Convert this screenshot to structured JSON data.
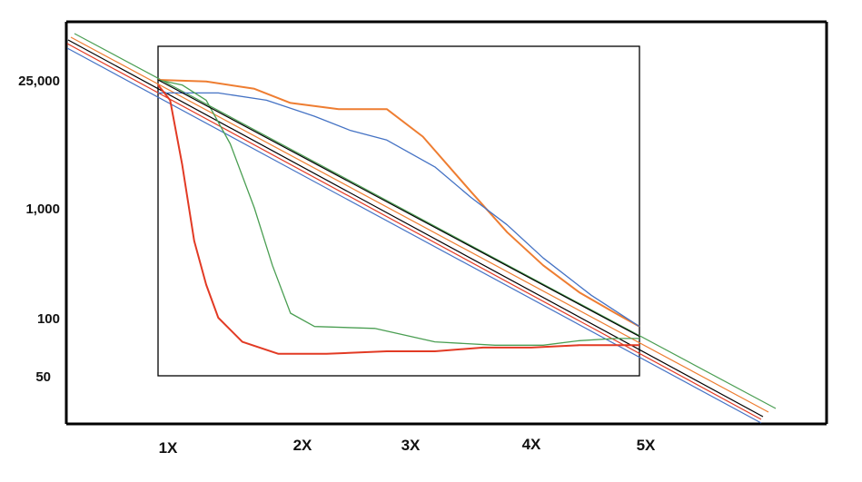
{
  "chart_data": {
    "type": "line",
    "title": "",
    "xlabel": "",
    "ylabel": "",
    "x_ticks": [
      "1X",
      "2X",
      "3X",
      "4X",
      "5X"
    ],
    "y_ticks": [
      "25,000",
      "1,000",
      "100",
      "50"
    ],
    "grid": false,
    "legend": "none",
    "colors": {
      "orange": "#ee7d31",
      "blue": "#4472c4",
      "green": "#4a9e52",
      "red": "#e23a24",
      "black": "#000000"
    },
    "series": [
      {
        "color": "orange",
        "points": [
          [
            1.0,
            25000
          ],
          [
            1.4,
            24000
          ],
          [
            1.8,
            20000
          ],
          [
            2.1,
            14000
          ],
          [
            2.5,
            12000
          ],
          [
            2.9,
            12000
          ],
          [
            3.2,
            6000
          ],
          [
            3.6,
            1500
          ],
          [
            3.9,
            600
          ],
          [
            4.2,
            300
          ],
          [
            4.5,
            170
          ],
          [
            4.8,
            110
          ],
          [
            5.0,
            90
          ]
        ]
      },
      {
        "color": "blue",
        "points": [
          [
            1.0,
            18000
          ],
          [
            1.5,
            18000
          ],
          [
            1.9,
            15000
          ],
          [
            2.3,
            10000
          ],
          [
            2.6,
            7000
          ],
          [
            2.9,
            5500
          ],
          [
            3.3,
            2800
          ],
          [
            3.6,
            1300
          ],
          [
            3.9,
            700
          ],
          [
            4.2,
            350
          ],
          [
            4.6,
            160
          ],
          [
            5.0,
            90
          ]
        ]
      },
      {
        "color": "green",
        "points": [
          [
            1.0,
            25000
          ],
          [
            1.2,
            22000
          ],
          [
            1.4,
            15000
          ],
          [
            1.6,
            5000
          ],
          [
            1.8,
            1000
          ],
          [
            1.95,
            300
          ],
          [
            2.1,
            110
          ],
          [
            2.3,
            90
          ],
          [
            2.8,
            88
          ],
          [
            3.3,
            75
          ],
          [
            3.8,
            72
          ],
          [
            4.2,
            72
          ],
          [
            4.5,
            76
          ],
          [
            4.8,
            78
          ],
          [
            5.0,
            78
          ]
        ]
      },
      {
        "color": "red",
        "points": [
          [
            1.0,
            22000
          ],
          [
            1.1,
            15000
          ],
          [
            1.2,
            3000
          ],
          [
            1.3,
            500
          ],
          [
            1.4,
            200
          ],
          [
            1.5,
            100
          ],
          [
            1.7,
            75
          ],
          [
            2.0,
            65
          ],
          [
            2.4,
            65
          ],
          [
            2.9,
            67
          ],
          [
            3.3,
            67
          ],
          [
            3.7,
            70
          ],
          [
            4.1,
            70
          ],
          [
            4.5,
            72
          ],
          [
            5.0,
            72
          ]
        ]
      },
      {
        "color": "black",
        "points": [
          [
            1.0,
            25000
          ],
          [
            5.0,
            80
          ]
        ]
      }
    ]
  }
}
